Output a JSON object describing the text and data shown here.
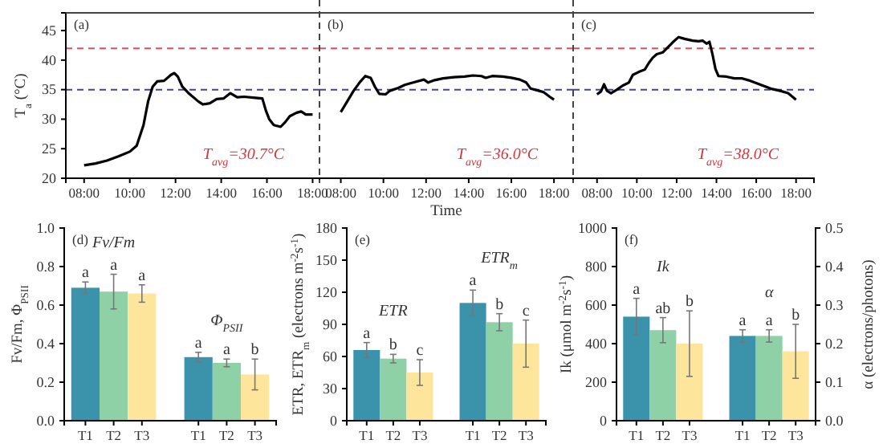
{
  "chart_data": [
    {
      "type": "line",
      "title": "(a)",
      "ylabel": "T$_{a}$ (°C)",
      "annotations": [
        "T$_{avg}$=30.7°C"
      ],
      "xlim": [
        7.2,
        18.3
      ],
      "ylim": [
        20,
        48
      ],
      "xticks": [
        {
          "value": 8,
          "label": "08:00"
        },
        {
          "value": 10,
          "label": "10:00"
        },
        {
          "value": 12,
          "label": "12:00"
        },
        {
          "value": 14,
          "label": "14:00"
        },
        {
          "value": 16,
          "label": "16:00"
        },
        {
          "value": 18,
          "label": "18:00"
        }
      ],
      "yticks": [
        20,
        25,
        30,
        35,
        40,
        45
      ],
      "ref_lines": [
        {
          "axis": "y",
          "value": 42,
          "color": "#e0505a",
          "line_style": "dashed"
        },
        {
          "axis": "y",
          "value": 35,
          "color": "#4040b0",
          "line_style": "dashed"
        }
      ],
      "series": [
        {
          "color": "#000000",
          "x": [
            8.0,
            8.5,
            9.0,
            9.5,
            10.0,
            10.3,
            10.6,
            10.8,
            11.0,
            11.2,
            11.5,
            11.8,
            11.95,
            12.1,
            12.3,
            12.6,
            13.0,
            13.2,
            13.5,
            13.8,
            14.1,
            14.4,
            14.7,
            15.0,
            15.5,
            15.8,
            15.95,
            16.1,
            16.3,
            16.6,
            16.8,
            17.0,
            17.3,
            17.5,
            17.7,
            18.0
          ],
          "values": [
            22.2,
            22.5,
            23.0,
            23.7,
            24.5,
            25.5,
            29,
            33,
            35.5,
            36.4,
            36.5,
            37.5,
            37.8,
            37.2,
            35.5,
            34.3,
            33,
            32.5,
            32.7,
            33.4,
            33.5,
            34.4,
            33.7,
            33.8,
            33.6,
            33.5,
            31.5,
            30,
            29,
            28.7,
            29.5,
            30.5,
            31.1,
            31.3,
            30.8,
            30.8
          ]
        }
      ]
    },
    {
      "type": "line",
      "title": "(b)",
      "xlabel": "Time",
      "annotations": [
        "T$_{avg}$=36.0°C"
      ],
      "tick_labels": "x",
      "xlim": [
        7.0,
        18.9
      ],
      "ylim": [
        20,
        48
      ],
      "xticks": [
        {
          "value": 8,
          "label": "08:00"
        },
        {
          "value": 10,
          "label": "10:00"
        },
        {
          "value": 12,
          "label": "12:00"
        },
        {
          "value": 14,
          "label": "14:00"
        },
        {
          "value": 16,
          "label": "16:00"
        },
        {
          "value": 18,
          "label": "18:00"
        }
      ],
      "yticks": [
        20,
        25,
        30,
        35,
        40,
        45
      ],
      "ref_lines": [
        {
          "axis": "y",
          "value": 42,
          "color": "#e0505a",
          "line_style": "dashed"
        },
        {
          "axis": "y",
          "value": 35,
          "color": "#4040b0",
          "line_style": "dashed"
        }
      ],
      "series": [
        {
          "color": "#000000",
          "x": [
            8.0,
            8.3,
            8.6,
            8.9,
            9.15,
            9.4,
            9.6,
            9.8,
            10.1,
            10.3,
            10.7,
            11.0,
            11.5,
            11.9,
            12.1,
            12.4,
            12.8,
            13.3,
            13.8,
            14.2,
            14.6,
            14.8,
            15.1,
            15.6,
            16.0,
            16.4,
            16.7,
            16.9,
            17.2,
            17.5,
            17.8,
            18.0
          ],
          "values": [
            31.2,
            33,
            34.8,
            36.3,
            37.3,
            37,
            35.5,
            34.3,
            34.2,
            34.8,
            35.3,
            35.8,
            36.3,
            36.7,
            36.2,
            36.6,
            36.9,
            37.1,
            37.2,
            37.4,
            37.3,
            37,
            37.3,
            37.2,
            37,
            36.7,
            36.2,
            35.2,
            34.9,
            34.6,
            33.8,
            33.3
          ]
        }
      ]
    },
    {
      "type": "line",
      "title": "(c)",
      "annotations": [
        "T$_{avg}$=38.0°C"
      ],
      "tick_labels": "x",
      "xlim": [
        6.8,
        18.9
      ],
      "ylim": [
        20,
        48
      ],
      "xticks": [
        {
          "value": 8,
          "label": "08:00"
        },
        {
          "value": 10,
          "label": "10:00"
        },
        {
          "value": 12,
          "label": "12:00"
        },
        {
          "value": 14,
          "label": "14:00"
        },
        {
          "value": 16,
          "label": "16:00"
        },
        {
          "value": 18,
          "label": "18:00"
        }
      ],
      "yticks": [
        20,
        25,
        30,
        35,
        40,
        45
      ],
      "ref_lines": [
        {
          "axis": "y",
          "value": 42,
          "color": "#e0505a",
          "line_style": "dashed"
        },
        {
          "axis": "y",
          "value": 35,
          "color": "#4040b0",
          "line_style": "dashed"
        }
      ],
      "series": [
        {
          "color": "#000000",
          "x": [
            8.0,
            8.2,
            8.35,
            8.5,
            8.7,
            9.0,
            9.3,
            9.6,
            9.8,
            10.1,
            10.4,
            10.6,
            10.8,
            11.0,
            11.3,
            11.6,
            11.8,
            12.1,
            12.4,
            12.8,
            13.1,
            13.3,
            13.5,
            13.65,
            13.8,
            13.95,
            14.1,
            14.5,
            14.9,
            15.3,
            15.6,
            16.0,
            16.4,
            16.8,
            17.2,
            17.6,
            18.0
          ],
          "values": [
            34.2,
            34.7,
            35.9,
            34.8,
            34.4,
            35,
            35.7,
            36.2,
            37.5,
            38,
            38.4,
            39.5,
            40.4,
            41,
            41.3,
            42.3,
            43,
            43.9,
            43.6,
            43.3,
            43.2,
            43.3,
            42.8,
            43.1,
            41,
            38.5,
            37.3,
            37.2,
            36.9,
            36.9,
            36.6,
            36.1,
            35.6,
            35.1,
            34.8,
            34.4,
            33.3
          ]
        }
      ]
    },
    {
      "type": "bar",
      "title": "(d)",
      "ylabel": "Fv/Fm, Φ$_{PSII}$",
      "categories": [
        "T1",
        "T2",
        "T3",
        null,
        "T1",
        "T2",
        "T3"
      ],
      "ylim": [
        0,
        1
      ],
      "yticks": [
        {
          "value": 0,
          "label": "0.0"
        },
        {
          "value": 0.2,
          "label": "0.2"
        },
        {
          "value": 0.4,
          "label": "0.4"
        },
        {
          "value": 0.6,
          "label": "0.6"
        },
        {
          "value": 0.8,
          "label": "0.8"
        },
        {
          "value": 1,
          "label": "1.0"
        }
      ],
      "series": [
        {
          "name": "Fv/Fm",
          "colors": [
            "#3a93ab",
            "#8ed1a6",
            "#fde69b",
            null,
            null,
            null,
            null
          ],
          "values": [
            0.69,
            0.67,
            0.66,
            null,
            null,
            null,
            null
          ],
          "errors": [
            0.03,
            0.09,
            0.045,
            null,
            null,
            null,
            null
          ],
          "value_labels": [
            "a",
            "a",
            "a",
            null,
            null,
            null,
            null
          ]
        },
        {
          "name": "Φ$_{PSII}$",
          "colors": [
            null,
            null,
            null,
            null,
            "#3a93ab",
            "#8ed1a6",
            "#fde69b"
          ],
          "values": [
            null,
            null,
            null,
            null,
            0.33,
            0.3,
            0.24
          ],
          "errors": [
            null,
            null,
            null,
            null,
            0.025,
            0.02,
            0.08
          ],
          "value_labels": [
            null,
            null,
            null,
            null,
            "a",
            "a",
            "b"
          ]
        }
      ]
    },
    {
      "type": "bar",
      "title": "(e)",
      "ylabel": "ETR, ETR$_{m}$ (electrons m$^{-2}$s$^{-1}$)",
      "categories": [
        "T1",
        "T2",
        "T3",
        null,
        "T1",
        "T2",
        "T3"
      ],
      "ylim": [
        0,
        180
      ],
      "yticks": [
        0,
        30,
        60,
        90,
        120,
        150,
        180
      ],
      "series": [
        {
          "name": "ETR",
          "colors": [
            "#3a93ab",
            "#8ed1a6",
            "#fde69b",
            null,
            null,
            null,
            null
          ],
          "values": [
            66,
            58,
            45,
            null,
            null,
            null,
            null
          ],
          "errors": [
            7,
            4,
            12,
            null,
            null,
            null,
            null
          ],
          "value_labels": [
            "a",
            "b",
            "c",
            null,
            null,
            null,
            null
          ]
        },
        {
          "name": "ETR$_{m}$",
          "colors": [
            null,
            null,
            null,
            null,
            "#3a93ab",
            "#8ed1a6",
            "#fde69b"
          ],
          "values": [
            null,
            null,
            null,
            null,
            110,
            92,
            72
          ],
          "errors": [
            null,
            null,
            null,
            null,
            12,
            8,
            22
          ],
          "value_labels": [
            null,
            null,
            null,
            null,
            "a",
            "b",
            "c"
          ]
        }
      ]
    },
    {
      "type": "bar",
      "title": "(f)",
      "ylabel": "Ik (μmol m$^{-2}$s$^{-1}$)",
      "y2label": "α (electrons/photons)",
      "categories": [
        "T1",
        "T2",
        "T3",
        null,
        "T1",
        "T2",
        "T3"
      ],
      "ylim": [
        0,
        1000
      ],
      "yticks": [
        0,
        200,
        400,
        600,
        800,
        1000
      ],
      "y2lim": [
        0,
        0.5
      ],
      "y2ticks": [
        {
          "value": 0,
          "label": "0.0"
        },
        {
          "value": 0.1,
          "label": "0.1"
        },
        {
          "value": 0.2,
          "label": "0.2"
        },
        {
          "value": 0.3,
          "label": "0.3"
        },
        {
          "value": 0.4,
          "label": "0.4"
        },
        {
          "value": 0.5,
          "label": "0.5"
        }
      ],
      "series": [
        {
          "name": "Ik",
          "colors": [
            "#3a93ab",
            "#8ed1a6",
            "#fde69b",
            null,
            null,
            null,
            null
          ],
          "values": [
            540,
            470,
            400,
            null,
            null,
            null,
            null
          ],
          "errors": [
            95,
            65,
            170,
            null,
            null,
            null,
            null
          ],
          "value_labels": [
            "a",
            "ab",
            "b",
            null,
            null,
            null,
            null
          ]
        },
        {
          "name": "α",
          "axis": "y2",
          "colors": [
            null,
            null,
            null,
            null,
            "#3a93ab",
            "#8ed1a6",
            "#fde69b"
          ],
          "values": [
            null,
            null,
            null,
            null,
            0.22,
            0.22,
            0.18
          ],
          "errors": [
            null,
            null,
            null,
            null,
            0.016,
            0.016,
            0.07
          ],
          "value_labels": [
            null,
            null,
            null,
            null,
            "a",
            "a",
            "b"
          ]
        }
      ]
    }
  ]
}
